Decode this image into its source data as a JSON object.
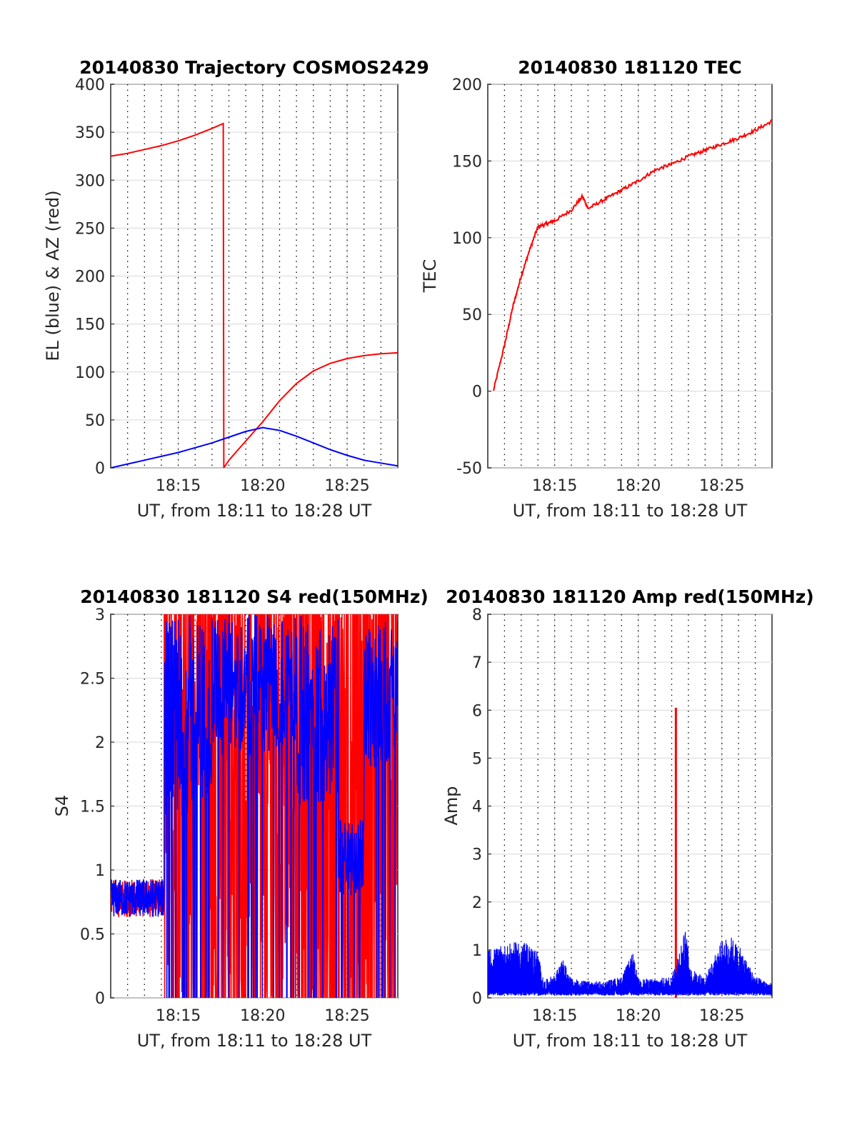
{
  "colors": {
    "red": "#ff0000",
    "blue": "#0000ff",
    "grid": "#dfdfdf",
    "axis": "#262626"
  },
  "chart_data": [
    {
      "id": "trajectory",
      "type": "line",
      "title": "20140830 Trajectory COSMOS2429",
      "xlabel": "UT, from 18:11 to 18:28 UT",
      "ylabel": "EL (blue) & AZ (red)",
      "xlim": [
        18.183,
        18.467
      ],
      "ylim": [
        0,
        400
      ],
      "yticks": [
        0,
        50,
        100,
        150,
        200,
        250,
        300,
        350,
        400
      ],
      "xtick_labels": [
        "18:15",
        "18:20",
        "18:25"
      ],
      "grid": true,
      "series": [
        {
          "color": "red",
          "points": [
            [
              "18:11",
              325
            ],
            [
              "18:12",
              328
            ],
            [
              "18:13",
              332
            ],
            [
              "18:14",
              336
            ],
            [
              "18:15",
              341
            ],
            [
              "18:16",
              347
            ],
            [
              "18:17",
              354
            ],
            [
              "18:17:40",
              359
            ],
            [
              "18:17:42",
              0
            ],
            [
              "18:18",
              8
            ],
            [
              "18:19",
              28
            ],
            [
              "18:20",
              48
            ],
            [
              "18:21",
              70
            ],
            [
              "18:22",
              88
            ],
            [
              "18:23",
              101
            ],
            [
              "18:24",
              109
            ],
            [
              "18:25",
              114
            ],
            [
              "18:26",
              117
            ],
            [
              "18:27",
              119
            ],
            [
              "18:28",
              120
            ]
          ]
        },
        {
          "color": "blue",
          "points": [
            [
              "18:11",
              0
            ],
            [
              "18:12",
              4
            ],
            [
              "18:13",
              8
            ],
            [
              "18:14",
              12
            ],
            [
              "18:15",
              16
            ],
            [
              "18:16",
              21
            ],
            [
              "18:17",
              26
            ],
            [
              "18:18",
              32
            ],
            [
              "18:19",
              38
            ],
            [
              "18:20",
              42
            ],
            [
              "18:21",
              39
            ],
            [
              "18:22",
              33
            ],
            [
              "18:23",
              26
            ],
            [
              "18:24",
              19
            ],
            [
              "18:25",
              13
            ],
            [
              "18:26",
              8
            ],
            [
              "18:27",
              5
            ],
            [
              "18:28",
              2
            ]
          ]
        }
      ]
    },
    {
      "id": "tec",
      "type": "line",
      "title": "20140830 181120 TEC",
      "xlabel": "UT, from 18:11 to 18:28 UT",
      "ylabel": "TEC",
      "xlim": [
        18.183,
        18.467
      ],
      "ylim": [
        -50,
        200
      ],
      "yticks": [
        -50,
        0,
        50,
        100,
        150,
        200
      ],
      "xtick_labels": [
        "18:15",
        "18:20",
        "18:25"
      ],
      "grid": true,
      "series": [
        {
          "color": "red",
          "points": [
            [
              "18:11:20",
              0
            ],
            [
              "18:12",
              30
            ],
            [
              "18:12:30",
              55
            ],
            [
              "18:13",
              75
            ],
            [
              "18:13:30",
              92
            ],
            [
              "18:14",
              107
            ],
            [
              "18:14:30",
              109
            ],
            [
              "18:15",
              111
            ],
            [
              "18:16",
              118
            ],
            [
              "18:16:40",
              127
            ],
            [
              "18:17",
              119
            ],
            [
              "18:18",
              125
            ],
            [
              "18:19",
              131
            ],
            [
              "18:20",
              137
            ],
            [
              "18:21",
              144
            ],
            [
              "18:22",
              148
            ],
            [
              "18:23",
              153
            ],
            [
              "18:24",
              157
            ],
            [
              "18:25",
              161
            ],
            [
              "18:26",
              165
            ],
            [
              "18:27",
              170
            ],
            [
              "18:28",
              176
            ]
          ]
        }
      ]
    },
    {
      "id": "s4",
      "type": "line",
      "title": "20140830 181120 S4 red(150MHz)",
      "xlabel": "UT, from 18:11 to 18:28 UT",
      "ylabel": "S4",
      "xlim": [
        18.183,
        18.467
      ],
      "ylim": [
        0,
        3
      ],
      "yticks": [
        0,
        0.5,
        1,
        1.5,
        2,
        2.5,
        3
      ],
      "xtick_labels": [
        "18:15",
        "18:20",
        "18:25"
      ],
      "grid": true,
      "series": [
        {
          "color": "red",
          "description_points": [
            [
              "18:11",
              0.8
            ],
            [
              "18:12",
              0.75
            ],
            [
              "18:13",
              0.8
            ],
            [
              "18:14",
              0.72
            ],
            [
              "18:14:10",
              0.6
            ]
          ],
          "spiky_from": "18:14:10",
          "spiky_to": "18:28",
          "range": [
            0,
            3
          ]
        },
        {
          "color": "blue",
          "description_points": [
            [
              "18:11",
              0.8
            ],
            [
              "18:12",
              0.75
            ],
            [
              "18:13",
              0.78
            ],
            [
              "18:14",
              0.7
            ],
            [
              "18:14:10",
              0.65
            ]
          ],
          "spiky_from": "18:14:10",
          "spiky_to": "18:28",
          "range": [
            0,
            3
          ]
        }
      ]
    },
    {
      "id": "amp",
      "type": "line",
      "title": "20140830 181120 Amp red(150MHz)",
      "xlabel": "UT, from 18:11 to 18:28 UT",
      "ylabel": "Amp",
      "xlim": [
        18.183,
        18.467
      ],
      "ylim": [
        0,
        8
      ],
      "yticks": [
        0,
        1,
        2,
        3,
        4,
        5,
        6,
        7,
        8
      ],
      "xtick_labels": [
        "18:15",
        "18:20",
        "18:25"
      ],
      "grid": true,
      "series": [
        {
          "color": "red",
          "spike": {
            "time": "18:22:15",
            "value": 6.05
          }
        },
        {
          "color": "blue",
          "envelope": [
            [
              "18:11",
              1.0
            ],
            [
              "18:12",
              1.1
            ],
            [
              "18:13",
              1.2
            ],
            [
              "18:14",
              1.0
            ],
            [
              "18:14:20",
              0.35
            ],
            [
              "18:15",
              0.5
            ],
            [
              "18:15:30",
              0.8
            ],
            [
              "18:16",
              0.4
            ],
            [
              "18:17",
              0.35
            ],
            [
              "18:18",
              0.35
            ],
            [
              "18:19",
              0.45
            ],
            [
              "18:19:40",
              0.95
            ],
            [
              "18:20",
              0.4
            ],
            [
              "18:21",
              0.4
            ],
            [
              "18:22",
              0.45
            ],
            [
              "18:22:30",
              1.1
            ],
            [
              "18:22:50",
              1.45
            ],
            [
              "18:23:10",
              0.6
            ],
            [
              "18:24",
              0.45
            ],
            [
              "18:25",
              1.2
            ],
            [
              "18:25:30",
              1.3
            ],
            [
              "18:26",
              1.1
            ],
            [
              "18:27",
              0.45
            ],
            [
              "18:28",
              0.3
            ]
          ]
        }
      ]
    }
  ]
}
